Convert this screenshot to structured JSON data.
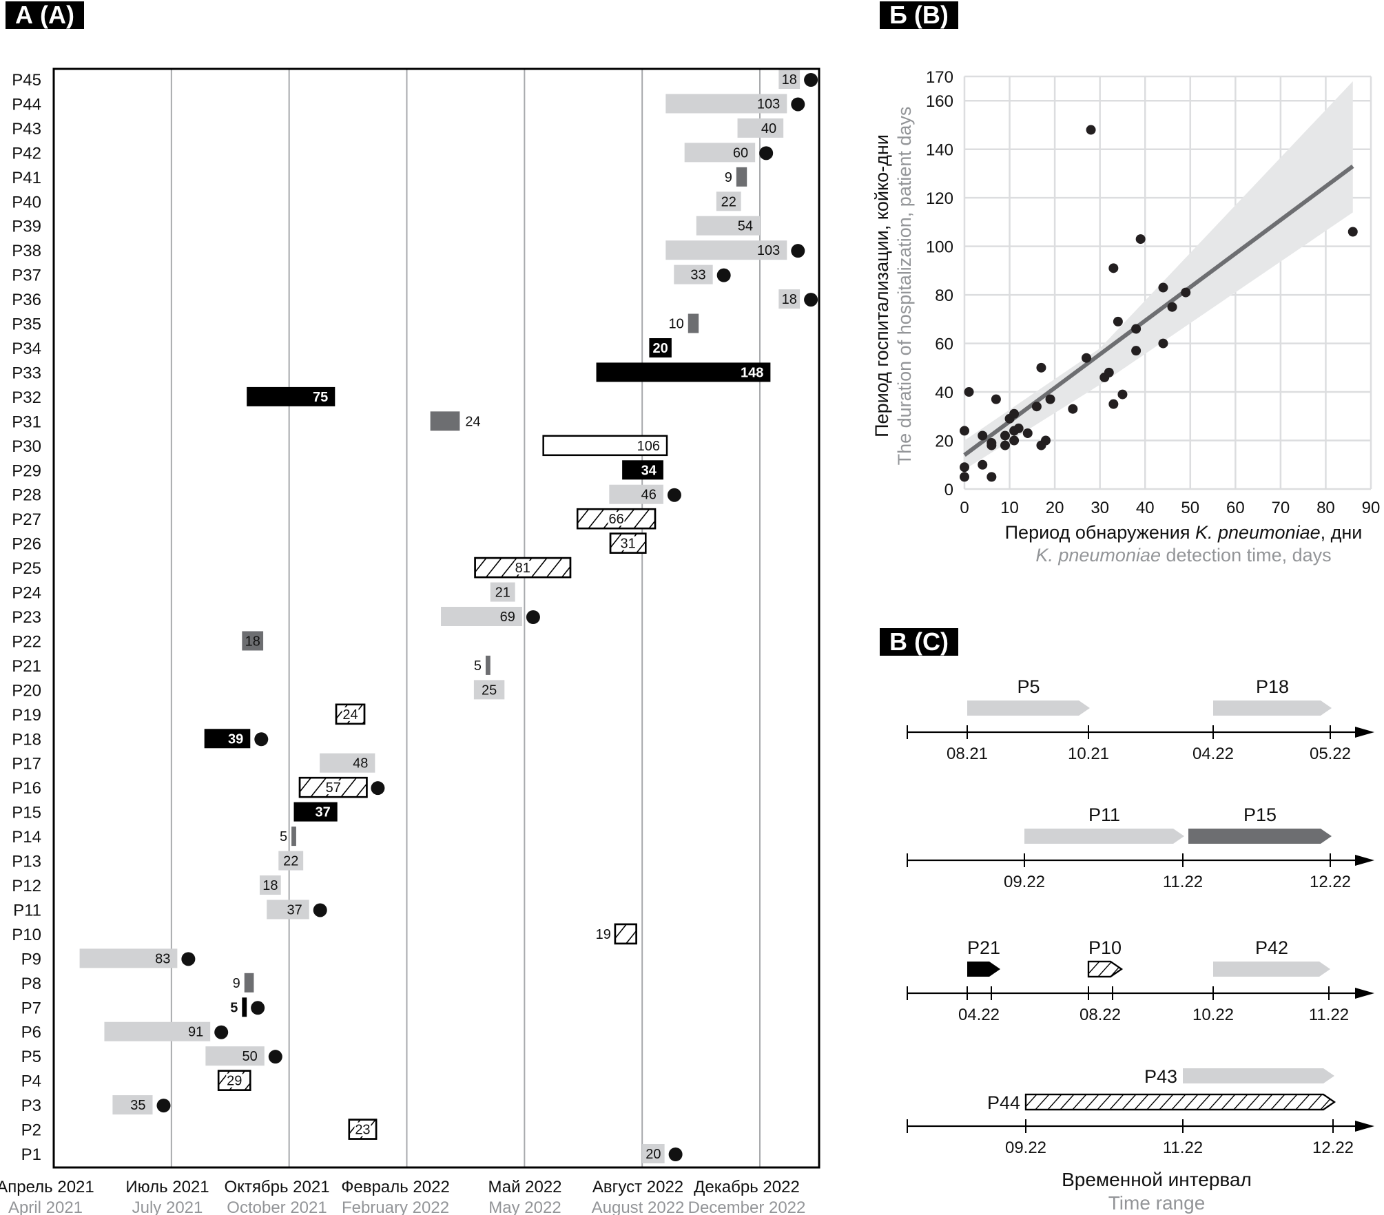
{
  "panels": {
    "a_label": "А (A)",
    "b_label": "Б (B)",
    "c_label": "В (C)"
  },
  "colors": {
    "light": "#d1d2d4",
    "dark": "#6d6e71",
    "black": "#000000",
    "grid": "#a7a9ac",
    "subtitle_gray": "#939598",
    "ci_band": "#e6e7e8",
    "fit_line": "#6d6e71"
  },
  "chart_data": [
    {
      "id": "gantt",
      "type": "bar",
      "subtype": "gantt",
      "title": "А (A)",
      "x_unit": "axis tick index (0 = April 2021 … 6 = December 2022)",
      "x_ticks": [
        {
          "ru": "Апрель 2021",
          "en": "April 2021"
        },
        {
          "ru": "Июль 2021",
          "en": "July 2021"
        },
        {
          "ru": "Октябрь 2021",
          "en": "October 2021"
        },
        {
          "ru": "Февраль 2022",
          "en": "February 2022"
        },
        {
          "ru": "Май 2022",
          "en": "May 2022"
        },
        {
          "ru": "Август 2022",
          "en": "August 2022"
        },
        {
          "ru": "Декабрь 2022",
          "en": "December 2022"
        }
      ],
      "xlim": [
        0,
        6.5
      ],
      "categories": [
        "P45",
        "P44",
        "P43",
        "P42",
        "P41",
        "P40",
        "P39",
        "P38",
        "P37",
        "P36",
        "P35",
        "P34",
        "P33",
        "P32",
        "P31",
        "P30",
        "P29",
        "P28",
        "P27",
        "P26",
        "P25",
        "P24",
        "P23",
        "P22",
        "P21",
        "P20",
        "P19",
        "P18",
        "P17",
        "P16",
        "P15",
        "P14",
        "P13",
        "P12",
        "P11",
        "P10",
        "P9",
        "P8",
        "P7",
        "P6",
        "P5",
        "P4",
        "P3",
        "P2",
        "P1"
      ],
      "bars": [
        {
          "patient": "P45",
          "start": 6.16,
          "end": 6.34,
          "days": "18",
          "style": "light",
          "dot": true,
          "label_pos": "inside"
        },
        {
          "patient": "P44",
          "start": 5.2,
          "end": 6.23,
          "days": "103",
          "style": "light",
          "dot": true,
          "label_pos": "inside"
        },
        {
          "patient": "P43",
          "start": 5.81,
          "end": 6.2,
          "days": "40",
          "style": "light",
          "dot": false,
          "label_pos": "inside"
        },
        {
          "patient": "P42",
          "start": 5.36,
          "end": 5.96,
          "days": "60",
          "style": "light",
          "dot": true,
          "label_pos": "inside"
        },
        {
          "patient": "P41",
          "start": 5.8,
          "end": 5.89,
          "days": "9",
          "style": "dark",
          "dot": false,
          "label_pos": "left"
        },
        {
          "patient": "P40",
          "start": 5.63,
          "end": 5.84,
          "days": "22",
          "style": "light",
          "dot": false,
          "label_pos": "inside"
        },
        {
          "patient": "P39",
          "start": 5.46,
          "end": 6.0,
          "days": "54",
          "style": "light",
          "dot": false,
          "label_pos": "inside"
        },
        {
          "patient": "P38",
          "start": 5.2,
          "end": 6.23,
          "days": "103",
          "style": "light",
          "dot": true,
          "label_pos": "inside"
        },
        {
          "patient": "P37",
          "start": 5.27,
          "end": 5.6,
          "days": "33",
          "style": "light",
          "dot": true,
          "label_pos": "inside"
        },
        {
          "patient": "P36",
          "start": 6.16,
          "end": 6.34,
          "days": "18",
          "style": "light",
          "dot": true,
          "label_pos": "inside"
        },
        {
          "patient": "P35",
          "start": 5.39,
          "end": 5.48,
          "days": "10",
          "style": "dark",
          "dot": false,
          "label_pos": "left"
        },
        {
          "patient": "P34",
          "start": 5.06,
          "end": 5.25,
          "days": "20",
          "style": "black",
          "dot": false,
          "label_pos": "inside"
        },
        {
          "patient": "P33",
          "start": 4.61,
          "end": 6.09,
          "days": "148",
          "style": "black",
          "dot": false,
          "label_pos": "inside"
        },
        {
          "patient": "P32",
          "start": 1.64,
          "end": 2.39,
          "days": "75",
          "style": "black",
          "dot": false,
          "label_pos": "inside"
        },
        {
          "patient": "P31",
          "start": 3.2,
          "end": 3.45,
          "days": "24",
          "style": "dark",
          "dot": false,
          "label_pos": "right"
        },
        {
          "patient": "P30",
          "start": 4.16,
          "end": 5.21,
          "days": "106",
          "style": "white",
          "dot": false,
          "label_pos": "inside"
        },
        {
          "patient": "P29",
          "start": 4.83,
          "end": 5.18,
          "days": "34",
          "style": "black",
          "dot": false,
          "label_pos": "inside"
        },
        {
          "patient": "P28",
          "start": 4.72,
          "end": 5.18,
          "days": "46",
          "style": "light",
          "dot": true,
          "label_pos": "inside"
        },
        {
          "patient": "P27",
          "start": 4.45,
          "end": 5.11,
          "days": "66",
          "style": "hatch",
          "dot": false,
          "label_pos": "center"
        },
        {
          "patient": "P26",
          "start": 4.73,
          "end": 5.03,
          "days": "31",
          "style": "hatch",
          "dot": false,
          "label_pos": "center"
        },
        {
          "patient": "P25",
          "start": 3.58,
          "end": 4.39,
          "days": "81",
          "style": "hatch",
          "dot": false,
          "label_pos": "center"
        },
        {
          "patient": "P24",
          "start": 3.71,
          "end": 3.92,
          "days": "21",
          "style": "light",
          "dot": false,
          "label_pos": "inside"
        },
        {
          "patient": "P23",
          "start": 3.29,
          "end": 3.98,
          "days": "69",
          "style": "light",
          "dot": true,
          "label_pos": "inside"
        },
        {
          "patient": "P22",
          "start": 1.6,
          "end": 1.78,
          "days": "18",
          "style": "dark",
          "dot": false,
          "label_pos": "inside"
        },
        {
          "patient": "P21",
          "start": 3.67,
          "end": 3.71,
          "days": "5",
          "style": "dark",
          "dot": false,
          "label_pos": "left"
        },
        {
          "patient": "P20",
          "start": 3.57,
          "end": 3.83,
          "days": "25",
          "style": "light",
          "dot": false,
          "label_pos": "inside"
        },
        {
          "patient": "P19",
          "start": 2.4,
          "end": 2.64,
          "days": "24",
          "style": "hatch",
          "dot": false,
          "label_pos": "center"
        },
        {
          "patient": "P18",
          "start": 1.28,
          "end": 1.67,
          "days": "39",
          "style": "black",
          "dot": true,
          "label_pos": "inside"
        },
        {
          "patient": "P17",
          "start": 2.26,
          "end": 2.73,
          "days": "48",
          "style": "light",
          "dot": false,
          "label_pos": "inside"
        },
        {
          "patient": "P16",
          "start": 2.09,
          "end": 2.66,
          "days": "57",
          "style": "hatch",
          "dot": true,
          "label_pos": "center"
        },
        {
          "patient": "P15",
          "start": 2.04,
          "end": 2.41,
          "days": "37",
          "style": "black",
          "dot": false,
          "label_pos": "inside"
        },
        {
          "patient": "P14",
          "start": 2.02,
          "end": 2.06,
          "days": "5",
          "style": "dark",
          "dot": false,
          "label_pos": "left"
        },
        {
          "patient": "P13",
          "start": 1.91,
          "end": 2.12,
          "days": "22",
          "style": "light",
          "dot": false,
          "label_pos": "inside"
        },
        {
          "patient": "P12",
          "start": 1.75,
          "end": 1.93,
          "days": "18",
          "style": "light",
          "dot": false,
          "label_pos": "inside"
        },
        {
          "patient": "P11",
          "start": 1.81,
          "end": 2.17,
          "days": "37",
          "style": "light",
          "dot": true,
          "label_pos": "inside"
        },
        {
          "patient": "P10",
          "start": 4.77,
          "end": 4.95,
          "days": "19",
          "style": "hatch",
          "dot": false,
          "label_pos": "left"
        },
        {
          "patient": "P9",
          "start": 0.22,
          "end": 1.05,
          "days": "83",
          "style": "light",
          "dot": true,
          "label_pos": "inside"
        },
        {
          "patient": "P8",
          "start": 1.62,
          "end": 1.7,
          "days": "9",
          "style": "dark",
          "dot": false,
          "label_pos": "left"
        },
        {
          "patient": "P7",
          "start": 1.6,
          "end": 1.64,
          "days": "5",
          "style": "black",
          "dot": true,
          "label_pos": "left"
        },
        {
          "patient": "P6",
          "start": 0.43,
          "end": 1.33,
          "days": "91",
          "style": "light",
          "dot": true,
          "label_pos": "inside"
        },
        {
          "patient": "P5",
          "start": 1.29,
          "end": 1.79,
          "days": "50",
          "style": "light",
          "dot": true,
          "label_pos": "inside"
        },
        {
          "patient": "P4",
          "start": 1.4,
          "end": 1.67,
          "days": "29",
          "style": "hatch",
          "dot": false,
          "label_pos": "center"
        },
        {
          "patient": "P3",
          "start": 0.5,
          "end": 0.84,
          "days": "35",
          "style": "light",
          "dot": true,
          "label_pos": "inside"
        },
        {
          "patient": "P2",
          "start": 2.51,
          "end": 2.74,
          "days": "23",
          "style": "hatch",
          "dot": false,
          "label_pos": "center"
        },
        {
          "patient": "P1",
          "start": 5.0,
          "end": 5.19,
          "days": "20",
          "style": "light",
          "dot": true,
          "label_pos": "inside"
        }
      ]
    },
    {
      "id": "scatter",
      "type": "scatter",
      "title": "Б (B)",
      "xlabel_ru": "Период обнаружения ",
      "xlabel_ru_italic": "K. pneumoniae",
      "xlabel_ru_tail": ", дни",
      "xlabel_en_italic": "K. pneumoniae",
      "xlabel_en_tail": " detection time, days",
      "ylabel_ru": "Период госпитализации, койко-дни",
      "ylabel_en": "The duration of hospitalization, patient days",
      "xlim": [
        0,
        90
      ],
      "ylim": [
        0,
        170
      ],
      "x_ticks": [
        "0",
        "10",
        "20",
        "30",
        "40",
        "50",
        "60",
        "70",
        "80",
        "90"
      ],
      "y_ticks": [
        "0",
        "20",
        "40",
        "60",
        "80",
        "100",
        "120",
        "140",
        "160",
        "170"
      ],
      "grid": true,
      "points": [
        {
          "x": 0,
          "y": 24
        },
        {
          "x": 0,
          "y": 9
        },
        {
          "x": 0,
          "y": 5
        },
        {
          "x": 1,
          "y": 40
        },
        {
          "x": 4,
          "y": 22
        },
        {
          "x": 4,
          "y": 10
        },
        {
          "x": 6,
          "y": 19
        },
        {
          "x": 6,
          "y": 18
        },
        {
          "x": 6,
          "y": 5
        },
        {
          "x": 7,
          "y": 37
        },
        {
          "x": 9,
          "y": 22
        },
        {
          "x": 9,
          "y": 18
        },
        {
          "x": 10,
          "y": 29
        },
        {
          "x": 11,
          "y": 31
        },
        {
          "x": 11,
          "y": 24
        },
        {
          "x": 11,
          "y": 20
        },
        {
          "x": 12,
          "y": 25
        },
        {
          "x": 14,
          "y": 23
        },
        {
          "x": 16,
          "y": 34
        },
        {
          "x": 17,
          "y": 50
        },
        {
          "x": 17,
          "y": 18
        },
        {
          "x": 18,
          "y": 20
        },
        {
          "x": 19,
          "y": 37
        },
        {
          "x": 24,
          "y": 33
        },
        {
          "x": 27,
          "y": 54
        },
        {
          "x": 28,
          "y": 148
        },
        {
          "x": 31,
          "y": 46
        },
        {
          "x": 32,
          "y": 48
        },
        {
          "x": 33,
          "y": 91
        },
        {
          "x": 33,
          "y": 35
        },
        {
          "x": 34,
          "y": 69
        },
        {
          "x": 35,
          "y": 39
        },
        {
          "x": 38,
          "y": 66
        },
        {
          "x": 38,
          "y": 57
        },
        {
          "x": 39,
          "y": 103
        },
        {
          "x": 44,
          "y": 83
        },
        {
          "x": 44,
          "y": 60
        },
        {
          "x": 46,
          "y": 75
        },
        {
          "x": 49,
          "y": 81
        },
        {
          "x": 86,
          "y": 106
        }
      ],
      "fit": {
        "x0": 0,
        "y0": 14,
        "x1": 86,
        "y1": 133
      },
      "ci": {
        "x0_low": 0,
        "x0_high": 0,
        "low_at_0": 8,
        "high_at_0": 20,
        "low_at_86": 114,
        "high_at_86": 168,
        "low_at_30": 43,
        "high_at_30": 58
      }
    },
    {
      "id": "timelines",
      "type": "diagram",
      "title": "В (C)",
      "xlabel_ru": "Временной интервал",
      "xlabel_en": "Time range",
      "rows": [
        {
          "ticks": [
            "08.21",
            "10.21",
            "04.22",
            "05.22"
          ],
          "arrows": [
            {
              "label": "P5",
              "from": 0,
              "to": 1,
              "style": "light"
            },
            {
              "label": "P18",
              "from": 2,
              "to": 3,
              "style": "light"
            }
          ]
        },
        {
          "ticks": [
            "09.22",
            "11.22",
            "12.22"
          ],
          "arrows": [
            {
              "label": "P11",
              "from": 0,
              "to": 1,
              "style": "light"
            },
            {
              "label": "P15",
              "from": 1,
              "to": 2,
              "style": "dark"
            }
          ]
        },
        {
          "ticks": [
            "04.22",
            "08.22",
            "10.22",
            "11.22"
          ],
          "arrows": [
            {
              "label": "P21",
              "from": 0,
              "to": 0,
              "style": "black"
            },
            {
              "label": "P10",
              "from": 1,
              "to": 1,
              "style": "hatch"
            },
            {
              "label": "P42",
              "from": 2,
              "to": 3,
              "style": "light"
            }
          ]
        },
        {
          "ticks": [
            "09.22",
            "11.22",
            "12.22"
          ],
          "arrows": [
            {
              "label": "P43",
              "from": 1,
              "to": 2,
              "style": "light"
            },
            {
              "label": "P44",
              "from": 0,
              "to": 2,
              "style": "hatch"
            }
          ]
        }
      ]
    }
  ]
}
